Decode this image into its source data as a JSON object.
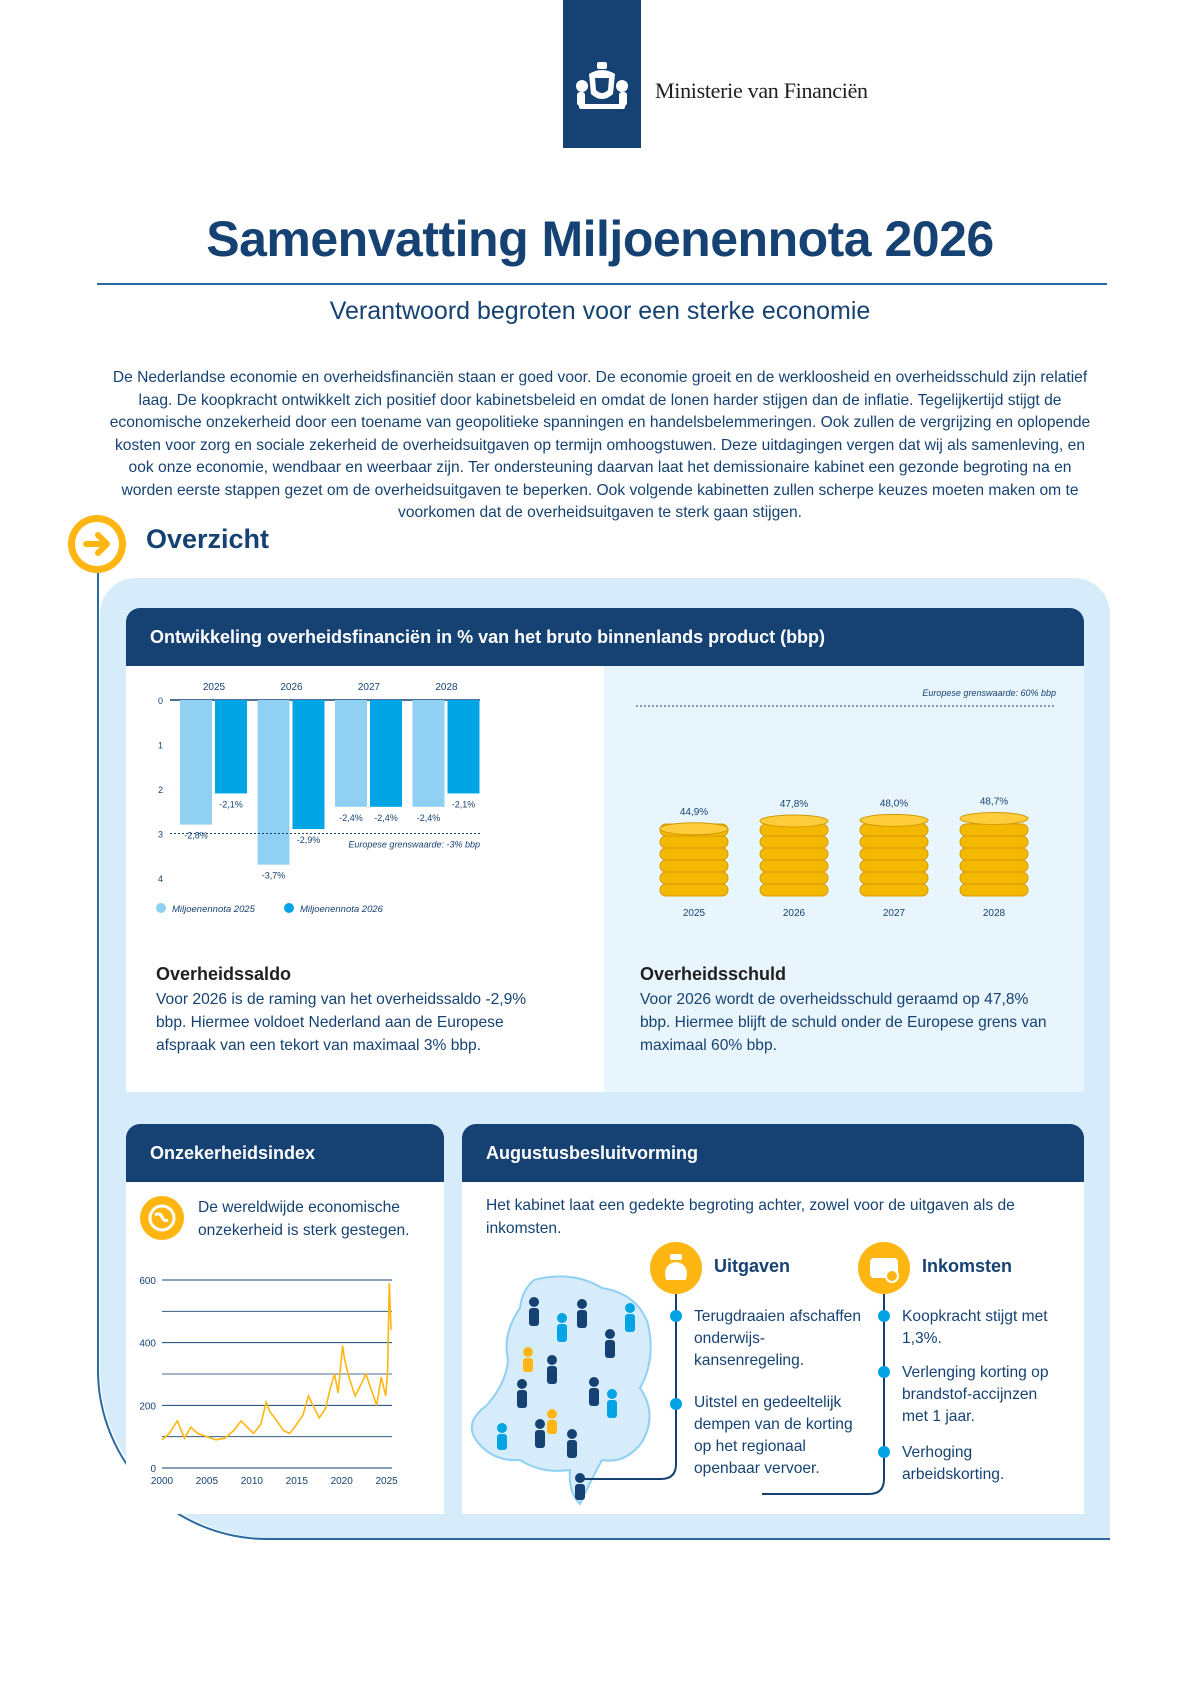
{
  "header": {
    "ministry": "Ministerie van Financiën",
    "title": "Samenvatting Miljoenennota 2026",
    "subtitle": "Verantwoord begroten voor een sterke economie"
  },
  "intro": "De Nederlandse economie en overheidsfinanciën staan er goed voor. De economie groeit en de werkloosheid en overheidsschuld zijn relatief laag. De koopkracht ontwikkelt zich positief door kabinetsbeleid en omdat de lonen harder stijgen dan de inflatie. Tegelijkertijd stijgt de economische onzekerheid door een toename van geopolitieke spanningen en handelsbelemmeringen. Ook zullen de vergrijzing en oplopende kosten voor zorg en sociale zekerheid de overheidsuitgaven op termijn omhoogstuwen. Deze uitdagingen vergen dat wij als samenleving, en ook onze economie, wendbaar en weerbaar zijn. Ter ondersteuning daarvan laat het demissionaire kabinet een gezonde begroting na en worden eerste stappen gezet om de overheidsuitgaven te beperken. Ook volgende kabinetten zullen scherpe keuzes moeten maken om te voorkomen dat de overheidsuitgaven te sterk gaan stijgen.",
  "overzicht": {
    "title": "Overzicht"
  },
  "card_finance": {
    "title": "Ontwikkeling overheidsfinanciën in % van het bruto binnenlands product (bbp)",
    "saldo_heading": "Overheidssaldo",
    "saldo_text": "Voor 2026 is de raming van het overheidssaldo -2,9% bbp. Hiermee voldoet Nederland aan de Europese afspraak van een tekort van maximaal 3% bbp.",
    "schuld_heading": "Overheidsschuld",
    "schuld_text": "Voor 2026 wordt de overheidsschuld geraamd op 47,8% bbp. Hiermee blijft de schuld onder de Europese grens van maximaal 60% bbp."
  },
  "card_index": {
    "title": "Onzekerheidsindex",
    "text": "De wereldwijde economische onzekerheid is sterk gestegen."
  },
  "card_august": {
    "title": "Augustusbesluitvorming",
    "text": "Het kabinet laat een gedekte begroting achter, zowel voor de uitgaven als de inkomsten.",
    "uitgaven": {
      "heading": "Uitgaven",
      "items": [
        "Terugdraaien afschaffen onderwijs-kansenregeling.",
        "Uitstel en gedeeltelijk dempen van de korting op het regionaal openbaar vervoer."
      ]
    },
    "inkomsten": {
      "heading": "Inkomsten",
      "items": [
        "Koopkracht stijgt met 1,3%.",
        "Verlenging korting op brandstof-accijnzen met 1 jaar.",
        "Verhoging arbeidskorting."
      ]
    }
  },
  "chart_data": [
    {
      "type": "bar",
      "categories": [
        "2025",
        "2026",
        "2027",
        "2028"
      ],
      "series": [
        {
          "name": "Miljoenennota 2025",
          "values": [
            -2.8,
            -3.7,
            -2.4,
            -2.4
          ],
          "labels": [
            "-2,8%",
            "-3,7%",
            "-2,4%",
            "-2,4%"
          ],
          "color": "#8fd0f3"
        },
        {
          "name": "Miljoenennota 2026",
          "values": [
            -2.1,
            -2.9,
            -2.4,
            -2.1
          ],
          "labels": [
            "-2,1%",
            "-2,9%",
            "-2,4%",
            "-2,1%"
          ],
          "color": "#01a4e4"
        }
      ],
      "ylim": [
        -4,
        0
      ],
      "yticks": [
        "0",
        "1",
        "2",
        "3",
        "4"
      ],
      "reference": {
        "value": -3,
        "label": "Europese grenswaarde: -3% bbp"
      }
    },
    {
      "type": "bar",
      "categories": [
        "2025",
        "2026",
        "2027",
        "2028"
      ],
      "values": [
        44.9,
        47.8,
        48.0,
        48.7
      ],
      "labels": [
        "44,9%",
        "47,8%",
        "48,0%",
        "48,7%"
      ],
      "reference": {
        "value": 60,
        "label": "Europese grenswaarde: 60% bbp"
      }
    },
    {
      "type": "line",
      "xticks": [
        "2000",
        "2005",
        "2010",
        "2015",
        "2020",
        "2025"
      ],
      "yticks": [
        "0",
        "200",
        "400",
        "600"
      ],
      "ylim": [
        0,
        600
      ],
      "xlim": [
        2000,
        2025.6
      ],
      "color": "#ffb612",
      "series": [
        {
          "x": [
            2000,
            2000.8,
            2001.7,
            2002.5,
            2003.2,
            2004,
            2005,
            2006,
            2007,
            2008,
            2008.8,
            2009.5,
            2010.2,
            2011,
            2011.6,
            2012,
            2012.8,
            2013.5,
            2014.2,
            2015,
            2015.7,
            2016.3,
            2016.8,
            2017.5,
            2018.2,
            2018.7,
            2019.2,
            2019.6,
            2020.1,
            2020.3,
            2020.8,
            2021.5,
            2022.2,
            2022.7,
            2023.3,
            2023.9,
            2024.4,
            2024.9,
            2025.1,
            2025.3,
            2025.5
          ],
          "y": [
            90,
            110,
            150,
            95,
            130,
            110,
            100,
            90,
            95,
            120,
            150,
            130,
            110,
            140,
            210,
            180,
            150,
            120,
            110,
            140,
            170,
            230,
            200,
            160,
            190,
            250,
            300,
            240,
            390,
            350,
            290,
            230,
            270,
            300,
            250,
            200,
            290,
            230,
            300,
            590,
            440
          ]
        }
      ]
    }
  ]
}
